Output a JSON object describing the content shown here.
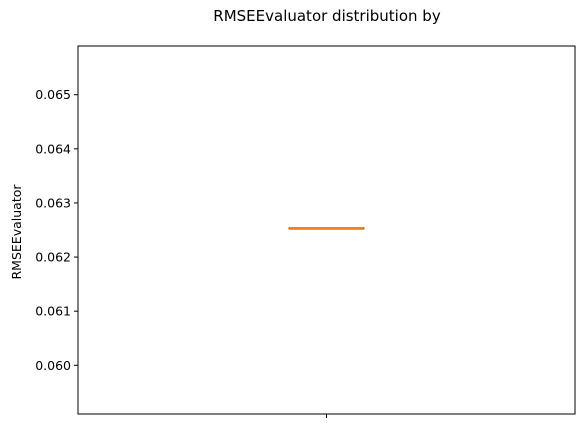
{
  "chart_data": {
    "type": "box",
    "title": "RMSEEvaluator distribution by",
    "xlabel": "",
    "ylabel": "RMSEEvaluator",
    "categories": [
      ""
    ],
    "boxes": [
      {
        "min": 0.06253,
        "q1": 0.06253,
        "median": 0.06253,
        "q3": 0.06253,
        "max": 0.06253
      }
    ],
    "ylim": [
      0.0591,
      0.0659
    ],
    "yticks": [
      0.06,
      0.061,
      0.062,
      0.063,
      0.064,
      0.065
    ],
    "ytick_labels": [
      "0.060",
      "0.061",
      "0.062",
      "0.063",
      "0.064",
      "0.065"
    ],
    "grid": false,
    "colors": {
      "box": "#000000",
      "median": "#ff7f0e",
      "axes": "#000000"
    }
  }
}
